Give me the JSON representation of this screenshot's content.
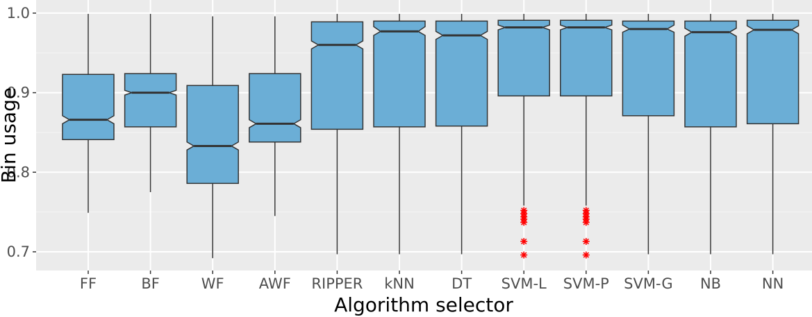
{
  "chart_data": {
    "type": "boxplot",
    "xlabel": "Algorithm selector",
    "ylabel": "Bin usage",
    "ylim": [
      0.69,
      1.005
    ],
    "y_ticks": [
      0.7,
      0.8,
      0.9,
      1.0
    ],
    "y_tick_labels": [
      "0.7",
      "0.8",
      "0.9",
      "1.0"
    ],
    "grid": true,
    "notched": true,
    "colors": {
      "box_fill": "#6baed6",
      "box_stroke": "#333333",
      "outlier": "#ff0000",
      "panel_bg": "#ebebeb",
      "grid_major": "#ffffff"
    },
    "categories": [
      "FF",
      "BF",
      "WF",
      "AWF",
      "RIPPER",
      "kNN",
      "DT",
      "SVM-L",
      "SVM-P",
      "SVM-G",
      "NB",
      "NN"
    ],
    "boxes": [
      {
        "label": "FF",
        "min": 0.749,
        "q1": 0.841,
        "median": 0.866,
        "q3": 0.923,
        "max": 0.999,
        "notch_low": 0.861,
        "notch_high": 0.871,
        "outliers": []
      },
      {
        "label": "BF",
        "min": 0.775,
        "q1": 0.857,
        "median": 0.9,
        "q3": 0.924,
        "max": 0.999,
        "notch_low": 0.897,
        "notch_high": 0.903,
        "outliers": []
      },
      {
        "label": "WF",
        "min": 0.692,
        "q1": 0.786,
        "median": 0.833,
        "q3": 0.909,
        "max": 0.996,
        "notch_low": 0.828,
        "notch_high": 0.838,
        "outliers": []
      },
      {
        "label": "AWF",
        "min": 0.745,
        "q1": 0.838,
        "median": 0.861,
        "q3": 0.924,
        "max": 0.996,
        "notch_low": 0.856,
        "notch_high": 0.866,
        "outliers": []
      },
      {
        "label": "RIPPER",
        "min": 0.697,
        "q1": 0.854,
        "median": 0.96,
        "q3": 0.989,
        "max": 0.999,
        "notch_low": 0.955,
        "notch_high": 0.965,
        "outliers": []
      },
      {
        "label": "kNN",
        "min": 0.697,
        "q1": 0.857,
        "median": 0.977,
        "q3": 0.99,
        "max": 0.999,
        "notch_low": 0.972,
        "notch_high": 0.983,
        "outliers": []
      },
      {
        "label": "DT",
        "min": 0.697,
        "q1": 0.858,
        "median": 0.972,
        "q3": 0.99,
        "max": 0.999,
        "notch_low": 0.967,
        "notch_high": 0.977,
        "outliers": []
      },
      {
        "label": "SVM-L",
        "min": 0.758,
        "q1": 0.896,
        "median": 0.982,
        "q3": 0.991,
        "max": 0.999,
        "notch_low": 0.979,
        "notch_high": 0.985,
        "outliers": [
          0.752,
          0.748,
          0.744,
          0.741,
          0.737,
          0.713,
          0.696
        ]
      },
      {
        "label": "SVM-P",
        "min": 0.758,
        "q1": 0.896,
        "median": 0.982,
        "q3": 0.991,
        "max": 0.999,
        "notch_low": 0.979,
        "notch_high": 0.985,
        "outliers": [
          0.752,
          0.748,
          0.744,
          0.741,
          0.737,
          0.713,
          0.696
        ]
      },
      {
        "label": "SVM-G",
        "min": 0.697,
        "q1": 0.871,
        "median": 0.98,
        "q3": 0.99,
        "max": 0.999,
        "notch_low": 0.976,
        "notch_high": 0.985,
        "outliers": []
      },
      {
        "label": "NB",
        "min": 0.697,
        "q1": 0.857,
        "median": 0.976,
        "q3": 0.99,
        "max": 0.999,
        "notch_low": 0.971,
        "notch_high": 0.981,
        "outliers": []
      },
      {
        "label": "NN",
        "min": 0.697,
        "q1": 0.861,
        "median": 0.979,
        "q3": 0.991,
        "max": 0.999,
        "notch_low": 0.974,
        "notch_high": 0.984,
        "outliers": []
      }
    ]
  }
}
